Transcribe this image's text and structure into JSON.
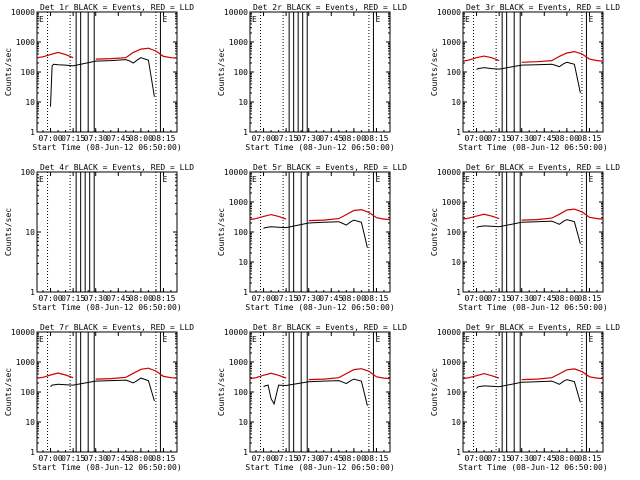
{
  "colors": {
    "events": "#000000",
    "lld": "#cc0000",
    "background": "#ffffff"
  },
  "shared": {
    "ylabel": "Counts/sec",
    "xlabel": "Start Time (08-Jun-12 06:50:00)",
    "xticks": [
      "07:00",
      "07:15",
      "07:30",
      "07:45",
      "08:00",
      "08:15"
    ],
    "marker_left": "E",
    "marker_right": "E"
  },
  "chart_data": [
    {
      "type": "line",
      "title": "Det 1r BLACK = Events, RED = LLD",
      "scale": "log",
      "yticks": [
        "1",
        "10",
        "100",
        "1000",
        "10000"
      ],
      "ylim": [
        1,
        10000
      ],
      "xlim": [
        "06:51",
        "08:24"
      ],
      "gaps": [
        [
          "07:16",
          "07:21"
        ],
        [
          "07:25",
          "07:30"
        ]
      ],
      "vlines_solid": [
        "07:17",
        "07:20",
        "07:25",
        "07:29",
        "08:13"
      ],
      "vlines_dotted": [
        "06:58",
        "07:13",
        "08:10"
      ],
      "series": [
        {
          "name": "Events",
          "x": [
            "07:00",
            "07:01",
            "07:02",
            "07:05",
            "07:10",
            "07:15",
            "07:30",
            "07:40",
            "07:50",
            "07:52",
            "07:55",
            "07:58",
            "08:00",
            "08:05",
            "08:09"
          ],
          "values": [
            7,
            160,
            180,
            175,
            170,
            160,
            230,
            240,
            260,
            240,
            200,
            260,
            300,
            250,
            15
          ]
        },
        {
          "name": "LLD",
          "x": [
            "06:51",
            "06:55",
            "07:00",
            "07:05",
            "07:10",
            "07:15",
            "07:20",
            "07:30",
            "07:40",
            "07:50",
            "07:55",
            "08:00",
            "08:05",
            "08:10",
            "08:15",
            "08:20",
            "08:24"
          ],
          "values": [
            300,
            320,
            380,
            450,
            380,
            300,
            280,
            270,
            280,
            300,
            450,
            580,
            620,
            500,
            330,
            300,
            290
          ]
        }
      ]
    },
    {
      "type": "line",
      "title": "Det 2r BLACK = Events, RED = LLD",
      "scale": "log",
      "yticks": [
        "1",
        "10",
        "100",
        "1000",
        "10000"
      ],
      "ylim": [
        1,
        10000
      ],
      "xlim": [
        "06:51",
        "08:24"
      ],
      "gaps": [],
      "vlines_solid": [
        "07:17",
        "07:20",
        "07:23",
        "07:26",
        "07:29",
        "08:13"
      ],
      "vlines_dotted": [
        "06:58",
        "07:13",
        "08:10"
      ],
      "series": []
    },
    {
      "type": "line",
      "title": "Det 3r BLACK = Events, RED = LLD",
      "scale": "log",
      "yticks": [
        "1",
        "10",
        "100",
        "1000",
        "10000"
      ],
      "ylim": [
        1,
        10000
      ],
      "xlim": [
        "06:51",
        "08:24"
      ],
      "gaps": [
        [
          "07:16",
          "07:21"
        ],
        [
          "07:25",
          "07:30"
        ]
      ],
      "vlines_solid": [
        "07:17",
        "07:20",
        "07:25",
        "07:29",
        "08:13"
      ],
      "vlines_dotted": [
        "06:58",
        "07:13",
        "08:10"
      ],
      "series": [
        {
          "name": "Events",
          "x": [
            "07:00",
            "07:01",
            "07:05",
            "07:10",
            "07:15",
            "07:30",
            "07:40",
            "07:50",
            "07:52",
            "07:55",
            "07:58",
            "08:00",
            "08:05",
            "08:09"
          ],
          "values": [
            120,
            130,
            140,
            130,
            125,
            170,
            175,
            180,
            170,
            150,
            190,
            210,
            180,
            20
          ]
        },
        {
          "name": "LLD",
          "x": [
            "06:51",
            "06:55",
            "07:00",
            "07:05",
            "07:10",
            "07:15",
            "07:20",
            "07:30",
            "07:40",
            "07:50",
            "07:55",
            "08:00",
            "08:05",
            "08:10",
            "08:15",
            "08:20",
            "08:24"
          ],
          "values": [
            230,
            250,
            300,
            340,
            300,
            240,
            220,
            210,
            220,
            240,
            330,
            430,
            480,
            400,
            270,
            240,
            230
          ]
        }
      ]
    },
    {
      "type": "line",
      "title": "Det 4r BLACK = Events, RED = LLD",
      "scale": "log",
      "yticks": [
        "1",
        "10",
        "100"
      ],
      "ylim": [
        1,
        100
      ],
      "xlim": [
        "06:51",
        "08:24"
      ],
      "gaps": [],
      "vlines_solid": [
        "07:17",
        "07:20",
        "07:23",
        "07:26",
        "07:29",
        "08:13"
      ],
      "vlines_dotted": [
        "06:58",
        "07:13",
        "08:10"
      ],
      "series": []
    },
    {
      "type": "line",
      "title": "Det 5r BLACK = Events, RED = LLD",
      "scale": "log",
      "yticks": [
        "1",
        "10",
        "100",
        "1000",
        "10000"
      ],
      "ylim": [
        1,
        10000
      ],
      "xlim": [
        "06:51",
        "08:24"
      ],
      "gaps": [
        [
          "07:16",
          "07:21"
        ],
        [
          "07:25",
          "07:30"
        ]
      ],
      "vlines_solid": [
        "07:17",
        "07:20",
        "07:25",
        "07:29",
        "08:13"
      ],
      "vlines_dotted": [
        "06:58",
        "07:13",
        "08:10"
      ],
      "series": [
        {
          "name": "Events",
          "x": [
            "07:00",
            "07:01",
            "07:05",
            "07:10",
            "07:15",
            "07:30",
            "07:40",
            "07:50",
            "07:52",
            "07:55",
            "07:58",
            "08:00",
            "08:05",
            "08:09"
          ],
          "values": [
            130,
            140,
            150,
            145,
            140,
            200,
            210,
            220,
            200,
            170,
            220,
            250,
            210,
            30
          ]
        },
        {
          "name": "LLD",
          "x": [
            "06:51",
            "06:55",
            "07:00",
            "07:05",
            "07:10",
            "07:15",
            "07:20",
            "07:30",
            "07:40",
            "07:50",
            "07:55",
            "08:00",
            "08:05",
            "08:10",
            "08:15",
            "08:20",
            "08:24"
          ],
          "values": [
            260,
            280,
            330,
            380,
            330,
            270,
            250,
            240,
            250,
            280,
            380,
            520,
            560,
            450,
            300,
            270,
            260
          ]
        }
      ]
    },
    {
      "type": "line",
      "title": "Det 6r BLACK = Events, RED = LLD",
      "scale": "log",
      "yticks": [
        "1",
        "10",
        "100",
        "1000",
        "10000"
      ],
      "ylim": [
        1,
        10000
      ],
      "xlim": [
        "06:51",
        "08:24"
      ],
      "gaps": [
        [
          "07:16",
          "07:21"
        ],
        [
          "07:25",
          "07:30"
        ]
      ],
      "vlines_solid": [
        "07:17",
        "07:20",
        "07:25",
        "07:29",
        "08:13"
      ],
      "vlines_dotted": [
        "06:58",
        "07:13",
        "08:10"
      ],
      "series": [
        {
          "name": "Events",
          "x": [
            "07:00",
            "07:01",
            "07:05",
            "07:10",
            "07:15",
            "07:30",
            "07:40",
            "07:50",
            "07:52",
            "07:55",
            "07:58",
            "08:00",
            "08:05",
            "08:09"
          ],
          "values": [
            140,
            150,
            160,
            155,
            150,
            210,
            220,
            230,
            210,
            180,
            230,
            260,
            220,
            40
          ]
        },
        {
          "name": "LLD",
          "x": [
            "06:51",
            "06:55",
            "07:00",
            "07:05",
            "07:10",
            "07:15",
            "07:20",
            "07:30",
            "07:40",
            "07:50",
            "07:55",
            "08:00",
            "08:05",
            "08:10",
            "08:15",
            "08:20",
            "08:24"
          ],
          "values": [
            270,
            290,
            340,
            390,
            340,
            280,
            260,
            250,
            260,
            290,
            390,
            540,
            580,
            470,
            310,
            280,
            270
          ]
        }
      ]
    },
    {
      "type": "line",
      "title": "Det 7r BLACK = Events, RED = LLD",
      "scale": "log",
      "yticks": [
        "1",
        "10",
        "100",
        "1000",
        "10000"
      ],
      "ylim": [
        1,
        10000
      ],
      "xlim": [
        "06:51",
        "08:24"
      ],
      "gaps": [
        [
          "07:16",
          "07:21"
        ],
        [
          "07:25",
          "07:30"
        ]
      ],
      "vlines_solid": [
        "07:17",
        "07:20",
        "07:25",
        "07:29",
        "08:13"
      ],
      "vlines_dotted": [
        "06:58",
        "07:13",
        "08:10"
      ],
      "series": [
        {
          "name": "Events",
          "x": [
            "07:00",
            "07:01",
            "07:05",
            "07:10",
            "07:15",
            "07:30",
            "07:40",
            "07:50",
            "07:52",
            "07:55",
            "07:58",
            "08:00",
            "08:05",
            "08:09"
          ],
          "values": [
            150,
            170,
            180,
            175,
            170,
            230,
            240,
            250,
            230,
            200,
            250,
            290,
            240,
            50
          ]
        },
        {
          "name": "LLD",
          "x": [
            "06:51",
            "06:55",
            "07:00",
            "07:05",
            "07:10",
            "07:15",
            "07:20",
            "07:30",
            "07:40",
            "07:50",
            "07:55",
            "08:00",
            "08:05",
            "08:10",
            "08:15",
            "08:20",
            "08:24"
          ],
          "values": [
            290,
            310,
            370,
            430,
            370,
            300,
            280,
            270,
            280,
            310,
            420,
            570,
            620,
            500,
            330,
            300,
            290
          ]
        }
      ]
    },
    {
      "type": "line",
      "title": "Det 8r BLACK = Events, RED = LLD",
      "scale": "log",
      "yticks": [
        "1",
        "10",
        "100",
        "1000",
        "10000"
      ],
      "ylim": [
        1,
        10000
      ],
      "xlim": [
        "06:51",
        "08:24"
      ],
      "gaps": [
        [
          "07:08",
          "07:09"
        ],
        [
          "07:16",
          "07:21"
        ],
        [
          "07:25",
          "07:30"
        ]
      ],
      "vlines_solid": [
        "07:17",
        "07:20",
        "07:25",
        "07:29",
        "08:13"
      ],
      "vlines_dotted": [
        "06:58",
        "07:13",
        "08:10"
      ],
      "series": [
        {
          "name": "Events",
          "x": [
            "07:00",
            "07:01",
            "07:03",
            "07:05",
            "07:07",
            "07:10",
            "07:15",
            "07:30",
            "07:40",
            "07:50",
            "07:52",
            "07:55",
            "07:58",
            "08:00",
            "08:05",
            "08:09"
          ],
          "values": [
            150,
            160,
            170,
            60,
            40,
            170,
            165,
            220,
            230,
            240,
            220,
            190,
            240,
            270,
            230,
            35
          ]
        },
        {
          "name": "LLD",
          "x": [
            "06:51",
            "06:55",
            "07:00",
            "07:05",
            "07:10",
            "07:15",
            "07:20",
            "07:30",
            "07:40",
            "07:50",
            "07:55",
            "08:00",
            "08:05",
            "08:10",
            "08:15",
            "08:20",
            "08:24"
          ],
          "values": [
            280,
            300,
            360,
            420,
            360,
            290,
            270,
            260,
            270,
            300,
            410,
            560,
            600,
            490,
            320,
            290,
            280
          ]
        }
      ]
    },
    {
      "type": "line",
      "title": "Det 9r BLACK = Events, RED = LLD",
      "scale": "log",
      "yticks": [
        "1",
        "10",
        "100",
        "1000",
        "10000"
      ],
      "ylim": [
        1,
        10000
      ],
      "xlim": [
        "06:51",
        "08:24"
      ],
      "gaps": [
        [
          "07:16",
          "07:21"
        ],
        [
          "07:25",
          "07:30"
        ]
      ],
      "vlines_solid": [
        "07:17",
        "07:20",
        "07:25",
        "07:29",
        "08:13"
      ],
      "vlines_dotted": [
        "06:58",
        "07:13",
        "08:10"
      ],
      "series": [
        {
          "name": "Events",
          "x": [
            "07:00",
            "07:01",
            "07:05",
            "07:10",
            "07:15",
            "07:30",
            "07:40",
            "07:50",
            "07:52",
            "07:55",
            "07:58",
            "08:00",
            "08:05",
            "08:09"
          ],
          "values": [
            130,
            150,
            160,
            155,
            150,
            210,
            220,
            230,
            210,
            180,
            230,
            260,
            220,
            45
          ]
        },
        {
          "name": "LLD",
          "x": [
            "06:51",
            "06:55",
            "07:00",
            "07:05",
            "07:10",
            "07:15",
            "07:20",
            "07:30",
            "07:40",
            "07:50",
            "07:55",
            "08:00",
            "08:05",
            "08:10",
            "08:15",
            "08:20",
            "08:24"
          ],
          "values": [
            280,
            300,
            350,
            410,
            350,
            290,
            270,
            260,
            270,
            300,
            400,
            550,
            590,
            480,
            320,
            290,
            280
          ]
        }
      ]
    }
  ]
}
